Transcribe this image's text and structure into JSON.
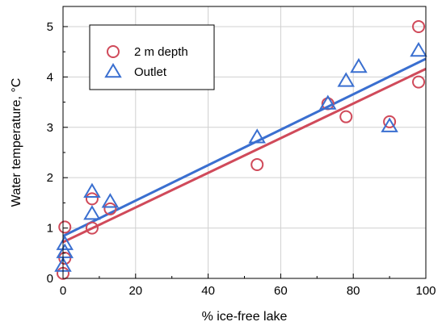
{
  "chart_data": {
    "type": "scatter",
    "title": "",
    "xlabel": "% ice-free lake",
    "ylabel": "Water temperature, °C",
    "xlim": [
      0,
      100
    ],
    "ylim": [
      0,
      5.4
    ],
    "xticks": [
      0,
      20,
      40,
      60,
      80,
      100
    ],
    "yticks": [
      0,
      1,
      2,
      3,
      4,
      5
    ],
    "grid": true,
    "legend_position": "top-left",
    "series": [
      {
        "name": "2 m depth",
        "marker": "circle",
        "color": "#d04a5a",
        "points": [
          {
            "x": 0,
            "y": 0.1
          },
          {
            "x": 0.5,
            "y": 0.4
          },
          {
            "x": 0.5,
            "y": 1.02
          },
          {
            "x": 8,
            "y": 1.0
          },
          {
            "x": 8,
            "y": 1.58
          },
          {
            "x": 13,
            "y": 1.38
          },
          {
            "x": 53.5,
            "y": 2.26
          },
          {
            "x": 73,
            "y": 3.47
          },
          {
            "x": 78,
            "y": 3.21
          },
          {
            "x": 90,
            "y": 3.11
          },
          {
            "x": 98,
            "y": 3.9
          },
          {
            "x": 98,
            "y": 5.0
          }
        ],
        "fit": {
          "x": [
            0,
            100
          ],
          "y": [
            0.72,
            4.16
          ]
        }
      },
      {
        "name": "Outlet",
        "marker": "triangle",
        "color": "#3a6fd0",
        "points": [
          {
            "x": 0,
            "y": 0.25
          },
          {
            "x": 0.5,
            "y": 0.52
          },
          {
            "x": 0.5,
            "y": 0.68
          },
          {
            "x": 8,
            "y": 1.28
          },
          {
            "x": 8,
            "y": 1.72
          },
          {
            "x": 13,
            "y": 1.52
          },
          {
            "x": 53.5,
            "y": 2.8
          },
          {
            "x": 73,
            "y": 3.47
          },
          {
            "x": 78,
            "y": 3.92
          },
          {
            "x": 81.5,
            "y": 4.2
          },
          {
            "x": 90,
            "y": 3.02
          },
          {
            "x": 98,
            "y": 4.52
          }
        ],
        "fit": {
          "x": [
            0,
            100
          ],
          "y": [
            0.84,
            4.36
          ]
        }
      }
    ]
  }
}
